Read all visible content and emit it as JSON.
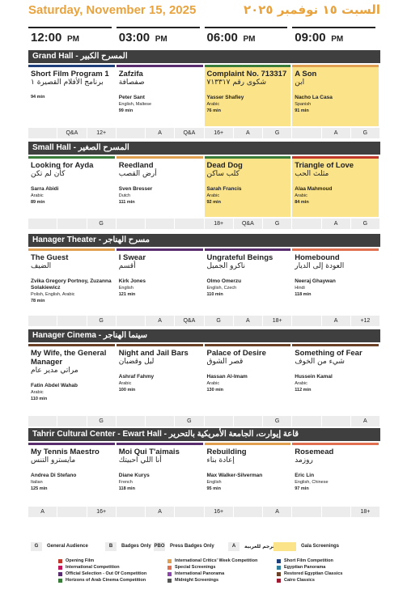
{
  "header": {
    "date_en": "Saturday, November 15, 2025",
    "date_ar": "السبت ١٥ نوفمبر ٢٠٢٥"
  },
  "times": [
    {
      "time": "12:00",
      "period": "PM"
    },
    {
      "time": "03:00",
      "period": "PM"
    },
    {
      "time": "06:00",
      "period": "PM"
    },
    {
      "time": "09:00",
      "period": "PM"
    }
  ],
  "halls": [
    {
      "name": "Grand Hall - المسرح الكبير",
      "films": [
        {
          "title": "Short Film Program 1",
          "title_ar": "برنامج الأفلام القصيرة ١",
          "duration": "94 min",
          "color": "#1f3f7a",
          "gala": false
        },
        {
          "title": "Zafzifa",
          "title_ar": "صفصافة",
          "director": "Peter Sant",
          "language": "English, Maltese",
          "duration": "99 min",
          "color": "#5a2d6e",
          "gala": false
        },
        {
          "title": "Complaint No. 713317",
          "title_ar": "شكوى رقم ٧١٣٣١٧",
          "director": "Yasser Shafiey",
          "language": "Arabic",
          "duration": "76 min",
          "color": "#3a7d3a",
          "gala": true
        },
        {
          "title": "A Son",
          "title_ar": "ابن",
          "director": "Nacho La Casa",
          "language": "Spanish",
          "duration": "91 min",
          "color": "#e0a050",
          "gala": true
        }
      ],
      "tags": [
        null,
        "Q&A",
        "12+",
        null,
        "A",
        "Q&A",
        "16+",
        "A",
        "G",
        null,
        "A",
        "G"
      ]
    },
    {
      "name": "Small Hall - المسرح الصغير",
      "films": [
        {
          "title": "Looking for Ayda",
          "title_ar": "كأن لم تكن",
          "director": "Sarra Abidi",
          "language": "Arabic",
          "duration": "89 min",
          "color": "#3a7d3a",
          "gala": false
        },
        {
          "title": "Reedland",
          "title_ar": "أرض القصب",
          "director": "Sven Bresser",
          "language": "Dutch",
          "duration": "111 min",
          "color": "#e0a050",
          "gala": false
        },
        {
          "title": "Dead Dog",
          "title_ar": "كلب ساكن",
          "director": "Sarah Francis",
          "language": "Arabic",
          "duration": "92 min",
          "color": "#3a7d3a",
          "gala": true
        },
        {
          "title": "Triangle of Love",
          "title_ar": "مثلث الحب",
          "director": "Alaa Mahmoud",
          "language": "Arabic",
          "duration": "84 min",
          "color": "#c0392b",
          "gala": true
        }
      ],
      "tags": [
        null,
        null,
        "G",
        null,
        null,
        null,
        "18+",
        "Q&A",
        "G",
        null,
        "A",
        "G"
      ]
    },
    {
      "name": "Hanager Theater - مسرح الهناجر",
      "films": [
        {
          "title": "The Guest",
          "title_ar": "الضيف",
          "director": "Zvika Gregory Portnoy, Zuzanna Solakiewicz",
          "language": "Polish, English, Arabic",
          "duration": "78 min",
          "color": "#e0a050",
          "gala": false
        },
        {
          "title": "I Swear",
          "title_ar": "أقسم",
          "director": "Kirk Jones",
          "language": "English",
          "duration": "121 min",
          "color": "#5a2d6e",
          "gala": false
        },
        {
          "title": "Ungrateful Beings",
          "title_ar": "ناكرو الجميل",
          "director": "Olmo Omerzu",
          "language": "English, Czech",
          "duration": "110 min",
          "color": "#5a2d6e",
          "gala": false
        },
        {
          "title": "Homebound",
          "title_ar": "العودة إلى الديار",
          "director": "Neeraj Ghaywan",
          "language": "Hindi",
          "duration": "118 min",
          "color": "#e07050",
          "gala": false
        }
      ],
      "tags": [
        null,
        null,
        "G",
        null,
        "A",
        "Q&A",
        "G",
        "A",
        "18+",
        null,
        "A",
        "+12"
      ]
    },
    {
      "name": "Hanager Cinema - سينما الهناجر",
      "films": [
        {
          "title": "My Wife, the General Manager",
          "title_ar": "مراتي مدير عام",
          "director": "Fatin Abdel Wahab",
          "language": "Arabic",
          "duration": "110 min",
          "color": "#6b4226",
          "gala": false
        },
        {
          "title": "Night and Jail Bars",
          "title_ar": "ليل وقضبان",
          "director": "Ashraf Fahmy",
          "language": "Arabic",
          "duration": "100 min",
          "color": "#6b4226",
          "gala": false
        },
        {
          "title": "Palace of Desire",
          "title_ar": "قصر الشوق",
          "director": "Hassan Al-Imam",
          "language": "Arabic",
          "duration": "130 min",
          "color": "#6b4226",
          "gala": false
        },
        {
          "title": "Something of Fear",
          "title_ar": "شيء من الخوف",
          "director": "Hussein Kamal",
          "language": "Arabic",
          "duration": "112 min",
          "color": "#6b4226",
          "gala": false
        }
      ],
      "tags": [
        null,
        null,
        "G",
        null,
        null,
        "G",
        null,
        null,
        "G",
        null,
        null,
        "A"
      ]
    },
    {
      "name": "Tahrir Cultural Center - Ewart Hall - قاعة إيوارت، الجامعة الأمريكية بالتحرير",
      "films": [
        {
          "title": "My Tennis Maestro",
          "title_ar": "مايسترو التنس",
          "director": "Andrea Di Stefano",
          "language": "Italian",
          "duration": "125 min",
          "color": "#5a2d6e",
          "gala": false
        },
        {
          "title": "Moi Qui T'aimais",
          "title_ar": "أنا اللي احبيتك",
          "director": "Diane Kurys",
          "language": "French",
          "duration": "118 min",
          "color": "#5a2d6e",
          "gala": false
        },
        {
          "title": "Rebuilding",
          "title_ar": "إعادة بناء",
          "director": "Max Walker-Silverman",
          "language": "English",
          "duration": "95 min",
          "color": "#e0a050",
          "gala": false
        },
        {
          "title": "Rosemead",
          "title_ar": "روزمد",
          "director": "Eric Lin",
          "language": "English, Chinese",
          "duration": "97 min",
          "color": "#e07050",
          "gala": false
        }
      ],
      "tags": [
        "A",
        null,
        "16+",
        null,
        "A",
        null,
        "16+",
        null,
        "A",
        null,
        null,
        "18+"
      ]
    }
  ],
  "legend": {
    "tags": [
      {
        "code": "G",
        "label": "General Audience"
      },
      {
        "code": "B",
        "label": "Badges Only"
      },
      {
        "code": "PBO",
        "label": "Press Badges Only"
      },
      {
        "code": "A",
        "label": "مترجم للعربية"
      }
    ],
    "gala": "Gala Screenings",
    "gala_color": "#fbe38a",
    "sections": [
      {
        "label": "Opening Film",
        "color": "#c0392b"
      },
      {
        "label": "International Competition",
        "color": "#c2185b"
      },
      {
        "label": "Official Selection - Out Of Competition",
        "color": "#5a2d6e"
      },
      {
        "label": "Horizons of Arab Cinema Competition",
        "color": "#3a7d3a"
      },
      {
        "label": "International Critics' Week Competition",
        "color": "#e0a050"
      },
      {
        "label": "Special Screenings",
        "color": "#e07050"
      },
      {
        "label": "International Panorama",
        "color": "#8e44ad"
      },
      {
        "label": "Midnight Screenings",
        "color": "#555555"
      },
      {
        "label": "Short Film Competition",
        "color": "#1f3f7a"
      },
      {
        "label": "Egyptian Panorama",
        "color": "#2e7d9a"
      },
      {
        "label": "Restored Egyptian Classics",
        "color": "#6b4226"
      },
      {
        "label": "Cairo Classics",
        "color": "#9e1b32"
      }
    ]
  }
}
